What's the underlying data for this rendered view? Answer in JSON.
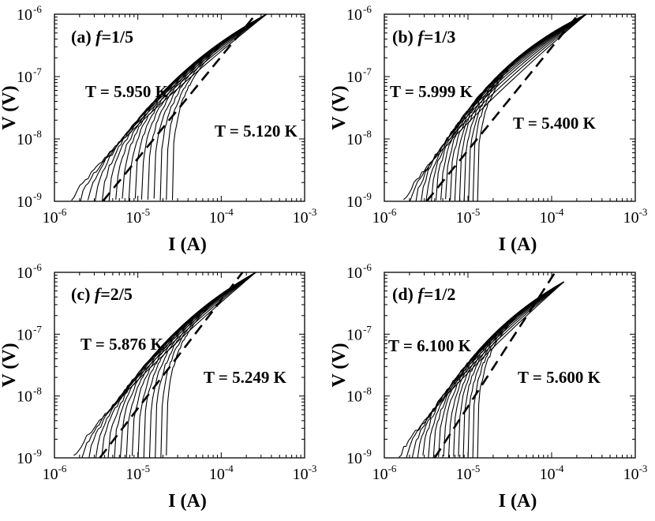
{
  "chart_data": [
    {
      "type": "line",
      "panel_label": "(a)",
      "f_symbol": "f",
      "f_value": "=1/5",
      "xlabel": "I (A)",
      "ylabel": "V (V)",
      "xscale": "log",
      "yscale": "log",
      "xlim": [
        1e-06,
        0.001
      ],
      "ylim": [
        1e-09,
        1e-06
      ],
      "x_ticks": [
        {
          "base": "10",
          "exp": "-6"
        },
        {
          "base": "10",
          "exp": "-5"
        },
        {
          "base": "10",
          "exp": "-4"
        },
        {
          "base": "10",
          "exp": "-3"
        }
      ],
      "y_ticks": [
        {
          "base": "10",
          "exp": "-9"
        },
        {
          "base": "10",
          "exp": "-8"
        },
        {
          "base": "10",
          "exp": "-7"
        },
        {
          "base": "10",
          "exp": "-6"
        }
      ],
      "annotations": [
        "T = 5.950 K",
        "T = 5.120 K"
      ],
      "temp_high": 5.95,
      "temp_low": 5.12,
      "n_curves": 16,
      "curve_left_start_x": 1.6e-06,
      "curve_right_start_x": 2.6e-05,
      "convergence_point": [
        0.00035,
        1e-06
      ],
      "dashed_line": [
        [
          3.8e-06,
          1e-09
        ],
        [
          0.00026,
          1e-06
        ]
      ]
    },
    {
      "type": "line",
      "panel_label": "(b)",
      "f_symbol": "f",
      "f_value": "=1/3",
      "xlabel": "I (A)",
      "ylabel": "V (V)",
      "xscale": "log",
      "yscale": "log",
      "xlim": [
        1e-06,
        0.001
      ],
      "ylim": [
        1e-09,
        1e-06
      ],
      "x_ticks": [
        {
          "base": "10",
          "exp": "-6"
        },
        {
          "base": "10",
          "exp": "-5"
        },
        {
          "base": "10",
          "exp": "-4"
        },
        {
          "base": "10",
          "exp": "-3"
        }
      ],
      "y_ticks": [
        {
          "base": "10",
          "exp": "-9"
        },
        {
          "base": "10",
          "exp": "-8"
        },
        {
          "base": "10",
          "exp": "-7"
        },
        {
          "base": "10",
          "exp": "-6"
        }
      ],
      "annotations": [
        "T = 5.999 K",
        "T = 5.400 K"
      ],
      "temp_high": 5.999,
      "temp_low": 5.4,
      "n_curves": 16,
      "curve_left_start_x": 1.7e-06,
      "curve_right_start_x": 1.3e-05,
      "convergence_point": [
        0.00026,
        1e-06
      ],
      "dashed_line": [
        [
          3.2e-06,
          1e-09
        ],
        [
          0.00021,
          1e-06
        ]
      ]
    },
    {
      "type": "line",
      "panel_label": "(c)",
      "f_symbol": "f",
      "f_value": "=2/5",
      "xlabel": "I (A)",
      "ylabel": "V (V)",
      "xscale": "log",
      "yscale": "log",
      "xlim": [
        1e-06,
        0.001
      ],
      "ylim": [
        1e-09,
        1e-06
      ],
      "x_ticks": [
        {
          "base": "10",
          "exp": "-6"
        },
        {
          "base": "10",
          "exp": "-5"
        },
        {
          "base": "10",
          "exp": "-4"
        },
        {
          "base": "10",
          "exp": "-3"
        }
      ],
      "y_ticks": [
        {
          "base": "10",
          "exp": "-9"
        },
        {
          "base": "10",
          "exp": "-8"
        },
        {
          "base": "10",
          "exp": "-7"
        },
        {
          "base": "10",
          "exp": "-6"
        }
      ],
      "annotations": [
        "T = 5.876 K",
        "T = 5.249 K"
      ],
      "temp_high": 5.876,
      "temp_low": 5.249,
      "n_curves": 16,
      "curve_left_start_x": 1.7e-06,
      "curve_right_start_x": 2.2e-05,
      "convergence_point": [
        0.00026,
        1e-06
      ],
      "dashed_line": [
        [
          3.5e-06,
          1e-09
        ],
        [
          0.00018,
          1e-06
        ]
      ]
    },
    {
      "type": "line",
      "panel_label": "(d)",
      "f_symbol": "f",
      "f_value": "=1/2",
      "xlabel": "I (A)",
      "ylabel": "V (V)",
      "xscale": "log",
      "yscale": "log",
      "xlim": [
        1e-06,
        0.001
      ],
      "ylim": [
        1e-09,
        1e-06
      ],
      "x_ticks": [
        {
          "base": "10",
          "exp": "-6"
        },
        {
          "base": "10",
          "exp": "-5"
        },
        {
          "base": "10",
          "exp": "-4"
        },
        {
          "base": "10",
          "exp": "-3"
        }
      ],
      "y_ticks": [
        {
          "base": "10",
          "exp": "-9"
        },
        {
          "base": "10",
          "exp": "-8"
        },
        {
          "base": "10",
          "exp": "-7"
        },
        {
          "base": "10",
          "exp": "-6"
        }
      ],
      "annotations": [
        "T = 6.100 K",
        "T = 5.600 K"
      ],
      "temp_high": 6.1,
      "temp_low": 5.6,
      "n_curves": 16,
      "curve_left_start_x": 1.5e-06,
      "curve_right_start_x": 1.3e-05,
      "convergence_point": [
        0.00014,
        7e-07
      ],
      "dashed_line": [
        [
          4e-06,
          1e-09
        ],
        [
          0.00011,
          1e-06
        ]
      ]
    }
  ]
}
